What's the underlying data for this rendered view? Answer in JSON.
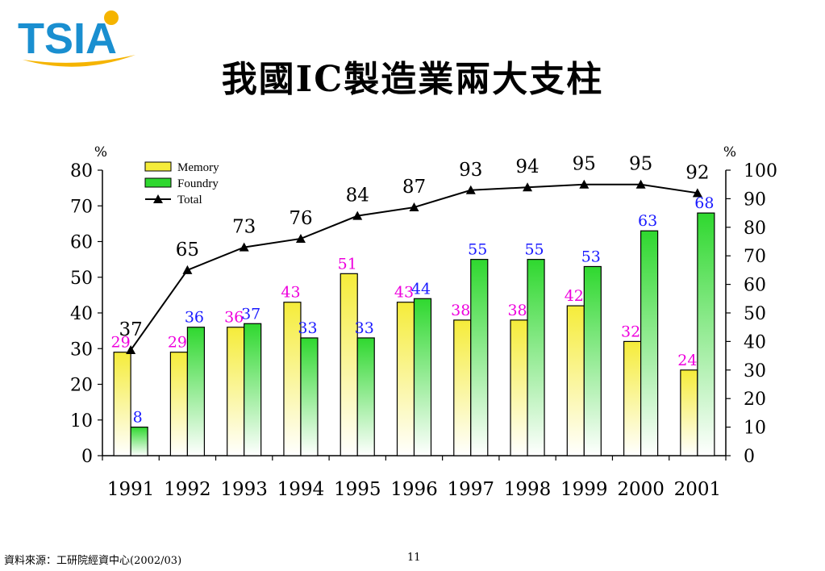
{
  "header": {
    "logo_text": "TSIA",
    "title": "我國IC製造業兩大支柱"
  },
  "footer": {
    "source": "資料來源：工研院經資中心(2002/03)",
    "page_number": "11"
  },
  "colors": {
    "memory": "#f5ec3a",
    "foundry": "#2fd82f",
    "memory_label": "#ee00dd",
    "foundry_label": "#1a1aff",
    "total_line": "#000000",
    "logo_blue": "#1a8fd0",
    "logo_yellow": "#f5b400"
  },
  "chart_data": {
    "type": "bar",
    "categories": [
      "1991",
      "1992",
      "1993",
      "1994",
      "1995",
      "1996",
      "1997",
      "1998",
      "1999",
      "2000",
      "2001"
    ],
    "series": [
      {
        "name": "Memory",
        "axis": "left",
        "values": [
          29,
          29,
          36,
          43,
          51,
          43,
          38,
          38,
          42,
          32,
          24
        ]
      },
      {
        "name": "Foundry",
        "axis": "left",
        "values": [
          8,
          36,
          37,
          33,
          33,
          44,
          55,
          55,
          53,
          63,
          68
        ]
      },
      {
        "name": "Total",
        "type": "line",
        "axis": "right",
        "values": [
          37,
          65,
          73,
          76,
          84,
          87,
          93,
          94,
          95,
          95,
          92
        ]
      }
    ],
    "left_unit": "%",
    "right_unit": "%",
    "ylim_left": [
      0,
      80
    ],
    "ylim_right": [
      0,
      100
    ],
    "yticks_left": [
      "0",
      "10",
      "20",
      "30",
      "40",
      "50",
      "60",
      "70",
      "80"
    ],
    "yticks_right": [
      "0",
      "10",
      "20",
      "30",
      "40",
      "50",
      "60",
      "70",
      "80",
      "90",
      "100"
    ],
    "legend": [
      "Memory",
      "Foundry",
      "Total"
    ],
    "legend_position": "top-left",
    "grid": false
  }
}
